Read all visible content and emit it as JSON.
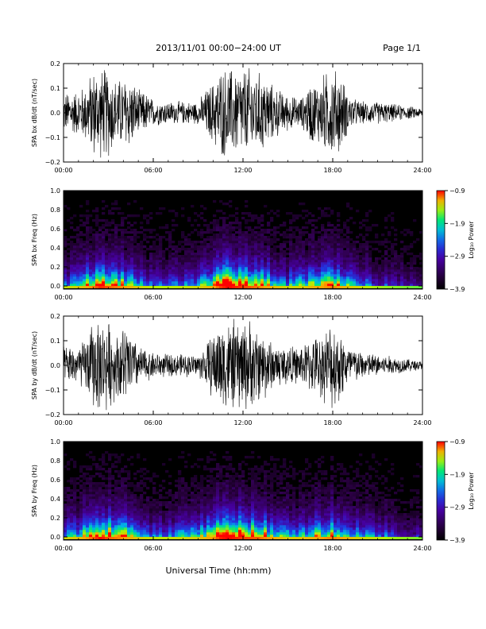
{
  "header": {
    "title": "2013/11/01  00:00−24:00 UT",
    "page": "Page 1/1"
  },
  "footer": {
    "xlabel": "Universal Time (hh:mm)"
  },
  "chart_data": [
    {
      "type": "line",
      "ylabel": "SPA bx dB/dt (nT/sec)",
      "xlabel": "",
      "xticks": [
        "00:00",
        "06:00",
        "12:00",
        "18:00",
        "24:00"
      ],
      "xlim": [
        0,
        24
      ],
      "ylim": [
        -0.2,
        0.2
      ],
      "yticks": [
        "0.2",
        "0.1",
        "0.0",
        "−0.1",
        "−0.2"
      ],
      "series": [
        {
          "x": [
            0,
            1,
            1.5,
            2,
            2.25,
            2.5,
            2.75,
            3,
            3.5,
            4,
            4.5,
            5,
            5.5,
            6,
            7,
            8,
            9,
            9.5,
            10,
            10.5,
            11,
            11.5,
            12,
            12.5,
            13,
            13.5,
            14,
            15,
            15.5,
            16,
            16.5,
            17,
            17.5,
            18,
            18.5,
            19,
            19.5,
            20,
            21,
            22,
            23,
            24
          ],
          "y": [
            0.09,
            0.1,
            0.13,
            0.2,
            0.2,
            0.2,
            0.2,
            0.2,
            0.15,
            0.16,
            0.16,
            0.1,
            0.09,
            0.06,
            0.05,
            0.05,
            0.05,
            0.1,
            0.14,
            0.2,
            0.2,
            0.2,
            0.2,
            0.2,
            0.18,
            0.17,
            0.12,
            0.08,
            0.07,
            0.07,
            0.14,
            0.14,
            0.18,
            0.2,
            0.18,
            0.09,
            0.06,
            0.05,
            0.05,
            0.04,
            0.03,
            0.02
          ]
        }
      ]
    },
    {
      "type": "heatmap",
      "ylabel": "SPA bx Freq (Hz)",
      "xticks": [
        "00:00",
        "06:00",
        "12:00",
        "18:00",
        "24:00"
      ],
      "yticks": [
        "1.0",
        "0.8",
        "0.6",
        "0.4",
        "0.2",
        "0.0"
      ],
      "xlim": [
        0,
        24
      ],
      "ylim": [
        0,
        1
      ],
      "colorbar": {
        "label": "Log₁₀ Power",
        "ticks": [
          "−0.9",
          "−1.9",
          "−2.9",
          "−3.9"
        ],
        "range": [
          -3.9,
          -0.9
        ]
      },
      "activity": {
        "x": [
          0,
          1,
          2,
          2.5,
          3,
          4,
          5,
          6,
          7,
          8,
          9,
          10,
          10.5,
          11,
          12,
          13,
          14,
          15,
          16,
          17,
          18,
          19,
          20,
          21,
          22,
          23,
          24
        ],
        "level": [
          0.45,
          0.55,
          0.8,
          0.95,
          0.85,
          0.75,
          0.55,
          0.4,
          0.4,
          0.45,
          0.5,
          0.7,
          0.9,
          1.0,
          0.9,
          0.8,
          0.65,
          0.5,
          0.55,
          0.7,
          0.8,
          0.6,
          0.45,
          0.35,
          0.3,
          0.25,
          0.2
        ]
      }
    },
    {
      "type": "line",
      "ylabel": "SPA by dB/dt (nT/sec)",
      "xlabel": "",
      "xticks": [
        "00:00",
        "06:00",
        "12:00",
        "18:00",
        "24:00"
      ],
      "xlim": [
        0,
        24
      ],
      "ylim": [
        -0.2,
        0.2
      ],
      "yticks": [
        "0.2",
        "0.1",
        "0.0",
        "−0.1",
        "−0.2"
      ],
      "series": [
        {
          "x": [
            0,
            1,
            1.5,
            2,
            2.25,
            2.5,
            2.75,
            3,
            3.5,
            4,
            4.5,
            5,
            5.5,
            6,
            7,
            8,
            9,
            9.5,
            10,
            10.5,
            11,
            11.5,
            12,
            12.5,
            13,
            13.5,
            14,
            15,
            15.5,
            16,
            16.5,
            17,
            17.5,
            18,
            18.5,
            19,
            19.5,
            20,
            21,
            22,
            23,
            24
          ],
          "y": [
            0.08,
            0.09,
            0.12,
            0.2,
            0.2,
            0.2,
            0.2,
            0.2,
            0.14,
            0.18,
            0.15,
            0.09,
            0.07,
            0.06,
            0.05,
            0.05,
            0.05,
            0.09,
            0.15,
            0.2,
            0.2,
            0.2,
            0.2,
            0.2,
            0.16,
            0.15,
            0.1,
            0.09,
            0.08,
            0.09,
            0.12,
            0.13,
            0.16,
            0.2,
            0.16,
            0.1,
            0.08,
            0.06,
            0.05,
            0.04,
            0.03,
            0.02
          ]
        }
      ]
    },
    {
      "type": "heatmap",
      "ylabel": "SPA by Freq (Hz)",
      "xticks": [
        "00:00",
        "06:00",
        "12:00",
        "18:00",
        "24:00"
      ],
      "yticks": [
        "1.0",
        "0.8",
        "0.6",
        "0.4",
        "0.2",
        "0.0"
      ],
      "xlim": [
        0,
        24
      ],
      "ylim": [
        0,
        1
      ],
      "colorbar": {
        "label": "Log₁₀ Power",
        "ticks": [
          "−0.9",
          "−1.9",
          "−2.9",
          "−3.9"
        ],
        "range": [
          -3.9,
          -0.9
        ]
      },
      "activity": {
        "x": [
          0,
          1,
          2,
          2.5,
          3,
          4,
          5,
          6,
          7,
          8,
          9,
          10,
          10.5,
          11,
          12,
          13,
          14,
          15,
          16,
          17,
          18,
          19,
          20,
          21,
          22,
          23,
          24
        ],
        "level": [
          0.5,
          0.6,
          0.85,
          1.0,
          0.85,
          0.75,
          0.55,
          0.45,
          0.45,
          0.5,
          0.55,
          0.75,
          0.95,
          1.0,
          0.9,
          0.85,
          0.7,
          0.55,
          0.6,
          0.7,
          0.8,
          0.65,
          0.5,
          0.45,
          0.35,
          0.3,
          0.25
        ]
      }
    }
  ]
}
